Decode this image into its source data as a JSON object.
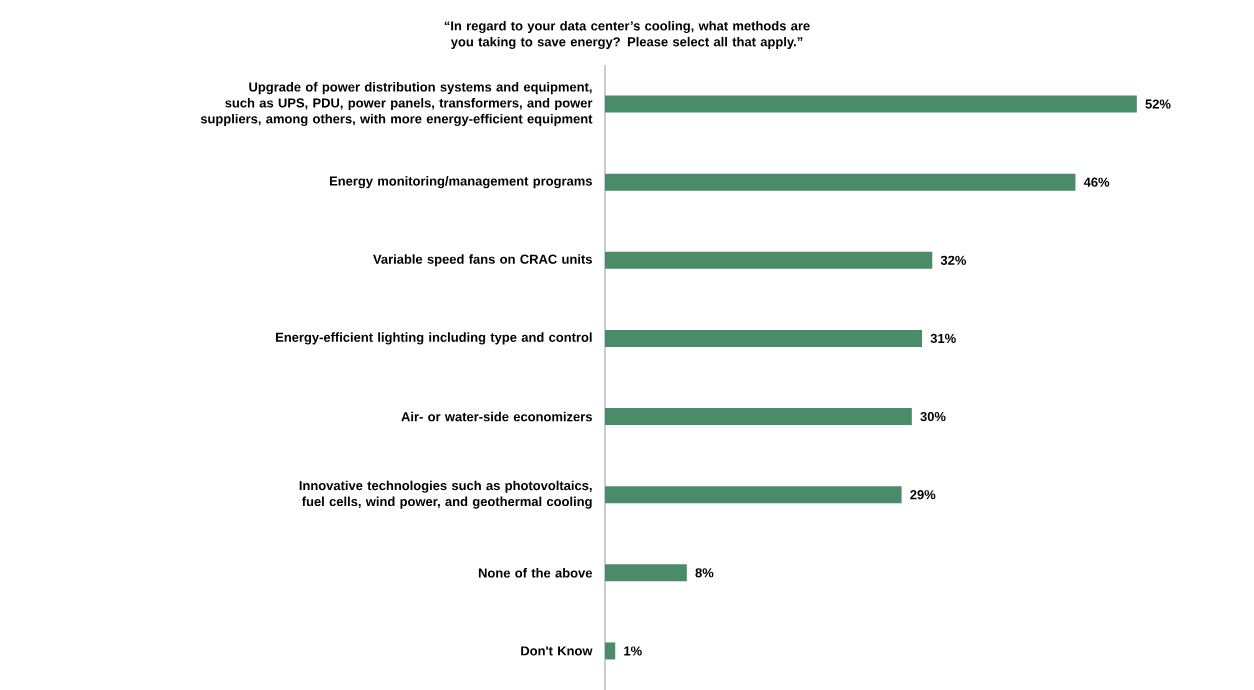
{
  "chart_data": {
    "type": "bar",
    "orientation": "horizontal",
    "title": "“In regard to your data center’s cooling, what methods are you taking to save energy? Please select all that apply.”",
    "categories": [
      "Upgrade of power distribution systems and equipment, such as UPS, PDU, power panels, transformers, and power suppliers, among others, with more energy-efficient equipment",
      "Energy monitoring/management programs",
      "Variable speed fans on CRAC units",
      "Energy-efficient lighting including type and control",
      "Air- or water-side economizers",
      "Innovative technologies such as photovoltaics, fuel cells, wind power, and geothermal cooling",
      "None of the above",
      "Don't Know"
    ],
    "values": [
      52,
      46,
      32,
      31,
      30,
      29,
      8,
      1
    ],
    "value_labels": [
      "52%",
      "46%",
      "32%",
      "31%",
      "30%",
      "29%",
      "8%",
      "1%"
    ],
    "color": "#4a8c69"
  }
}
